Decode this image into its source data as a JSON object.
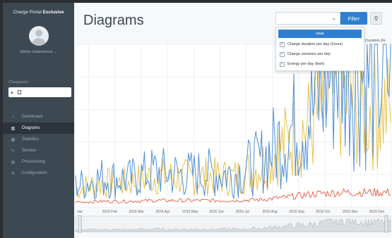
{
  "sidebar": {
    "brand_prefix": "Charge Portal",
    "brand_bold": "Exclusive",
    "user_name": "Stefan Gabrielsson",
    "section_label": "Chargepoint",
    "station_marker": "▸",
    "nav": [
      {
        "label": "Dashboard",
        "icon": "home-icon",
        "glyph": "⌂"
      },
      {
        "label": "Diagrams",
        "icon": "bar-chart-icon",
        "glyph": "▥"
      },
      {
        "label": "Statistics",
        "icon": "table-icon",
        "glyph": "▦"
      },
      {
        "label": "Service",
        "icon": "wrench-icon",
        "glyph": "✎"
      },
      {
        "label": "Provisioning",
        "icon": "box-icon",
        "glyph": "▤"
      },
      {
        "label": "Configuration",
        "icon": "gear-icon",
        "glyph": "✲"
      }
    ],
    "active_index": 1
  },
  "header": {
    "title": "Diagrams",
    "filter_label": "Filter",
    "select_chevron": "⌄",
    "search_glyph": "🔍"
  },
  "dropdown": {
    "clear_label": "clear",
    "options": [
      {
        "label": "Charge duration per day (hours)",
        "checked": true
      },
      {
        "label": "Charge sessions per day",
        "checked": true
      },
      {
        "label": "Energy per day (kwh)",
        "checked": true
      }
    ],
    "check_glyph": "✓"
  },
  "chart": {
    "legend_label": "Duration (hi",
    "x_ticks": [
      "Jan",
      "2016 Feb",
      "2016 Mar",
      "2016 Apr",
      "2016 May",
      "2016 Jun",
      "2016 Jul",
      "2016 Aug",
      "2016 Sep",
      "2016 Oct",
      "2016 Nov",
      "2016 Dec"
    ],
    "colors": {
      "duration": "#4f8fd6",
      "sessions": "#e8c24a",
      "energy": "#e2583e",
      "grid": "#e4e8eb",
      "navigator_fill": "#d9dde0"
    }
  },
  "chart_data": {
    "type": "line",
    "x": [
      "2016-01",
      "2016-02",
      "2016-03",
      "2016-04",
      "2016-05",
      "2016-06",
      "2016-07",
      "2016-08",
      "2016-09",
      "2016-10",
      "2016-11",
      "2016-12"
    ],
    "series": [
      {
        "name": "Charge duration per day (hours)",
        "values": [
          13,
          18,
          17,
          22,
          20,
          21,
          20,
          28,
          45,
          60,
          95,
          82
        ]
      },
      {
        "name": "Charge sessions per day",
        "values": [
          11,
          15,
          15,
          19,
          18,
          19,
          18,
          25,
          40,
          52,
          70,
          60
        ]
      },
      {
        "name": "Energy per day (kwh)",
        "values": [
          3,
          3.5,
          3.5,
          4,
          4,
          4,
          4,
          4.5,
          6,
          8,
          9,
          9
        ]
      }
    ],
    "xlabel": "",
    "ylabel": "",
    "grid": true,
    "legend": "top-right"
  }
}
